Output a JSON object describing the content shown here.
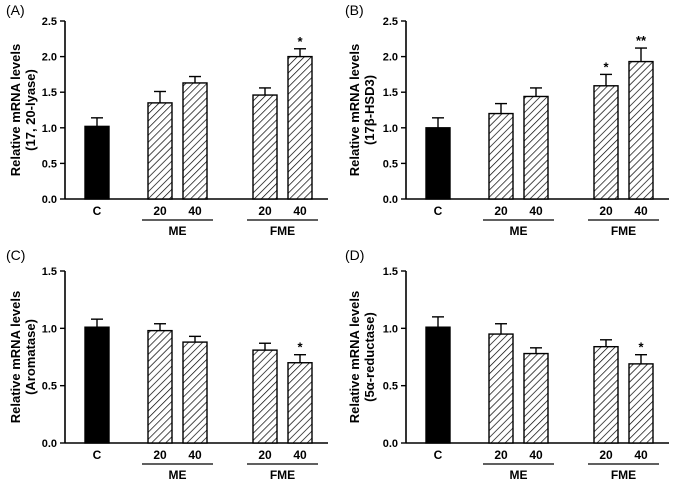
{
  "chart_data": [
    {
      "type": "bar",
      "panel": "(A)",
      "ylabel": [
        "Relative mRNA levels",
        "(17, 20-lyase)"
      ],
      "ylim": [
        0,
        2.5
      ],
      "yticks": [
        "0.0",
        "0.5",
        "1.0",
        "1.5",
        "2.0",
        "2.5"
      ],
      "categories": [
        "C",
        "20",
        "40",
        "20",
        "40"
      ],
      "groups": [
        "ME",
        "FME"
      ],
      "values": [
        1.02,
        1.35,
        1.63,
        1.46,
        2.0
      ],
      "errors": [
        0.12,
        0.16,
        0.09,
        0.1,
        0.11
      ],
      "significance": [
        "",
        "",
        "",
        "",
        "*"
      ]
    },
    {
      "type": "bar",
      "panel": "(B)",
      "ylabel": [
        "Relative mRNA levels",
        "(17β-HSD3)"
      ],
      "ylim": [
        0,
        2.5
      ],
      "yticks": [
        "0.0",
        "0.5",
        "1.0",
        "1.5",
        "2.0",
        "2.5"
      ],
      "categories": [
        "C",
        "20",
        "40",
        "20",
        "40"
      ],
      "groups": [
        "ME",
        "FME"
      ],
      "values": [
        1.0,
        1.2,
        1.44,
        1.59,
        1.93
      ],
      "errors": [
        0.14,
        0.14,
        0.12,
        0.16,
        0.19
      ],
      "significance": [
        "",
        "",
        "",
        "*",
        "**"
      ]
    },
    {
      "type": "bar",
      "panel": "(C)",
      "ylabel": [
        "Relative mRNA levels",
        "(Aromatase)"
      ],
      "ylim": [
        0,
        1.5
      ],
      "yticks": [
        "0.0",
        "0.5",
        "1.0",
        "1.5"
      ],
      "categories": [
        "C",
        "20",
        "40",
        "20",
        "40"
      ],
      "groups": [
        "ME",
        "FME"
      ],
      "values": [
        1.01,
        0.98,
        0.88,
        0.81,
        0.7
      ],
      "errors": [
        0.07,
        0.06,
        0.05,
        0.06,
        0.07
      ],
      "significance": [
        "",
        "",
        "",
        "",
        "*"
      ]
    },
    {
      "type": "bar",
      "panel": "(D)",
      "ylabel": [
        "Relative mRNA levels",
        "(5α-reductase)"
      ],
      "ylim": [
        0,
        1.5
      ],
      "yticks": [
        "0.0",
        "0.5",
        "1.0",
        "1.5"
      ],
      "categories": [
        "C",
        "20",
        "40",
        "20",
        "40"
      ],
      "groups": [
        "ME",
        "FME"
      ],
      "values": [
        1.01,
        0.95,
        0.78,
        0.84,
        0.69
      ],
      "errors": [
        0.09,
        0.09,
        0.05,
        0.06,
        0.08
      ],
      "significance": [
        "",
        "",
        "",
        "",
        "*"
      ]
    }
  ]
}
